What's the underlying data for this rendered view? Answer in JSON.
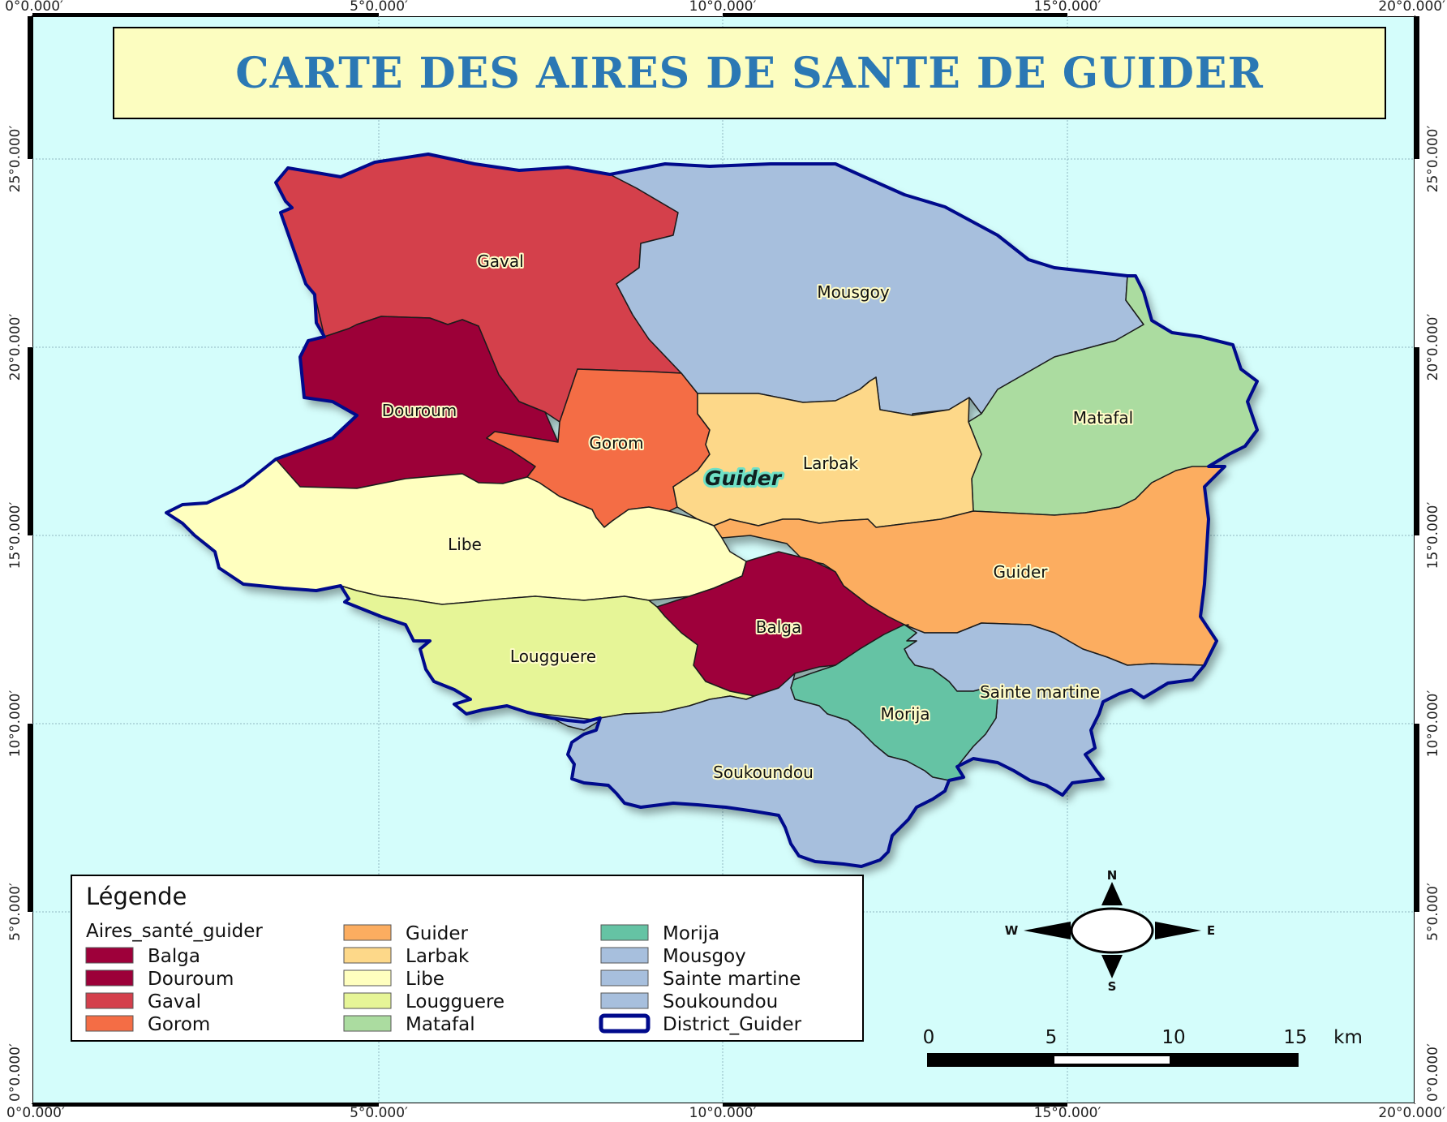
{
  "title": "CARTE DES AIRES DE SANTE DE GUIDER",
  "colors": {
    "ocean": "#d4fdfb",
    "title_bg": "#fcfdc0",
    "title_text": "#2b78b4",
    "district_outline": "#000a8c",
    "frame": "#000000"
  },
  "grid_labels": {
    "top": [
      "0°0.000′",
      "5°0.000′",
      "10°0.000′",
      "15°0.000′",
      "20°0.000′"
    ],
    "bottom": [
      "0°0.000′",
      "5°0.000′",
      "10°0.000′",
      "15°0.000′",
      "20°0.000′"
    ],
    "left": [
      "25°0.000′",
      "20°0.000′",
      "15°0.000′",
      "10°0.000′",
      "5°0.000′",
      "0°0.000′"
    ],
    "right": [
      "25°0.000′",
      "20°0.000′",
      "15°0.000′",
      "10°0.000′",
      "5°0.000′",
      "0°0.000′"
    ]
  },
  "zones": [
    {
      "id": "gaval",
      "name": "Gaval",
      "color": "#d43f4c"
    },
    {
      "id": "mousgoy",
      "name": "Mousgoy",
      "color": "#a7bfdd"
    },
    {
      "id": "douroum",
      "name": "Douroum",
      "color": "#9c0039"
    },
    {
      "id": "gorom",
      "name": "Gorom",
      "color": "#f46d45"
    },
    {
      "id": "larbak",
      "name": "Larbak",
      "color": "#fdd889"
    },
    {
      "id": "matafal",
      "name": "Matafal",
      "color": "#abdca0"
    },
    {
      "id": "libe",
      "name": "Libe",
      "color": "#ffffbf"
    },
    {
      "id": "guider",
      "name": "Guider",
      "color": "#fcad60"
    },
    {
      "id": "balga",
      "name": "Balga",
      "color": "#9e003a"
    },
    {
      "id": "lougguere",
      "name": "Lougguere",
      "color": "#e6f597"
    },
    {
      "id": "sainte-martine",
      "name": "Sainte martine",
      "color": "#a7bfdd"
    },
    {
      "id": "morija",
      "name": "Morija",
      "color": "#65c3a4"
    },
    {
      "id": "soukoundou",
      "name": "Soukoundou",
      "color": "#a7bfdd"
    }
  ],
  "district_label": "Guider",
  "legend": {
    "title": "Légende",
    "layer_name": "Aires_santé_guider",
    "columns": [
      [
        {
          "label": "Balga",
          "color": "#9e003a"
        },
        {
          "label": "Douroum",
          "color": "#9c0039"
        },
        {
          "label": "Gaval",
          "color": "#d43f4c"
        },
        {
          "label": "Gorom",
          "color": "#f46d45"
        }
      ],
      [
        {
          "label": "Guider",
          "color": "#fcad60"
        },
        {
          "label": "Larbak",
          "color": "#fdd889"
        },
        {
          "label": "Libe",
          "color": "#ffffbf"
        },
        {
          "label": "Lougguere",
          "color": "#e6f597"
        },
        {
          "label": "Matafal",
          "color": "#abdca0"
        }
      ],
      [
        {
          "label": "Morija",
          "color": "#65c3a4"
        },
        {
          "label": "Mousgoy",
          "color": "#a7bfdd"
        },
        {
          "label": "Sainte martine",
          "color": "#a7bfdd"
        },
        {
          "label": "Soukoundou",
          "color": "#a7bfdd"
        },
        {
          "label": "District_Guider",
          "color": "#ffffff",
          "outline": "#000a8c"
        }
      ]
    ]
  },
  "compass": {
    "n": "N",
    "s": "S",
    "e": "E",
    "w": "W"
  },
  "scale_bar": {
    "ticks": [
      "0",
      "5",
      "10",
      "15"
    ],
    "unit": "km"
  }
}
